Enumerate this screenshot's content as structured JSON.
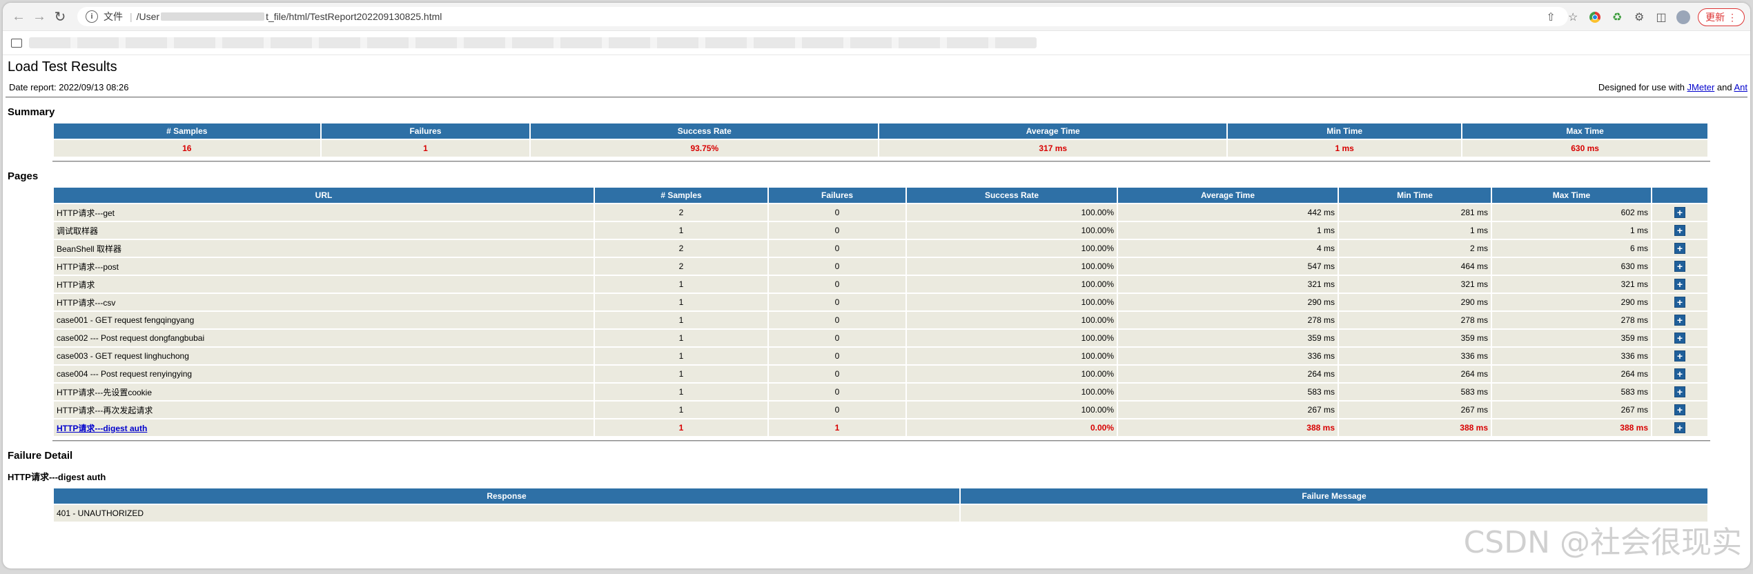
{
  "browser": {
    "url_prefix": "/User",
    "url_suffix": "t_file/html/TestReport202209130825.html",
    "file_label": "文件",
    "update_label": "更新"
  },
  "report": {
    "title": "Load Test Results",
    "date_report": "Date report: 2022/09/13 08:26",
    "designed_prefix": "Designed for use with ",
    "jmeter_link": "JMeter",
    "and_text": " and ",
    "ant_link": "Ant"
  },
  "summary": {
    "heading": "Summary",
    "headers": [
      "# Samples",
      "Failures",
      "Success Rate",
      "Average Time",
      "Min Time",
      "Max Time"
    ],
    "values": [
      "16",
      "1",
      "93.75%",
      "317 ms",
      "1 ms",
      "630 ms"
    ]
  },
  "pages": {
    "heading": "Pages",
    "headers": [
      "URL",
      "# Samples",
      "Failures",
      "Success Rate",
      "Average Time",
      "Min Time",
      "Max Time",
      ""
    ],
    "rows": [
      {
        "url": "HTTP请求---get",
        "samples": "2",
        "failures": "0",
        "rate": "100.00%",
        "avg": "442 ms",
        "min": "281 ms",
        "max": "602 ms"
      },
      {
        "url": "调试取样器",
        "samples": "1",
        "failures": "0",
        "rate": "100.00%",
        "avg": "1 ms",
        "min": "1 ms",
        "max": "1 ms"
      },
      {
        "url": "BeanShell 取样器",
        "samples": "2",
        "failures": "0",
        "rate": "100.00%",
        "avg": "4 ms",
        "min": "2 ms",
        "max": "6 ms"
      },
      {
        "url": "HTTP请求---post",
        "samples": "2",
        "failures": "0",
        "rate": "100.00%",
        "avg": "547 ms",
        "min": "464 ms",
        "max": "630 ms"
      },
      {
        "url": "HTTP请求",
        "samples": "1",
        "failures": "0",
        "rate": "100.00%",
        "avg": "321 ms",
        "min": "321 ms",
        "max": "321 ms"
      },
      {
        "url": "HTTP请求---csv",
        "samples": "1",
        "failures": "0",
        "rate": "100.00%",
        "avg": "290 ms",
        "min": "290 ms",
        "max": "290 ms"
      },
      {
        "url": "case001 - GET request fengqingyang",
        "samples": "1",
        "failures": "0",
        "rate": "100.00%",
        "avg": "278 ms",
        "min": "278 ms",
        "max": "278 ms"
      },
      {
        "url": "case002 --- Post request dongfangbubai",
        "samples": "1",
        "failures": "0",
        "rate": "100.00%",
        "avg": "359 ms",
        "min": "359 ms",
        "max": "359 ms"
      },
      {
        "url": "case003 - GET request linghuchong",
        "samples": "1",
        "failures": "0",
        "rate": "100.00%",
        "avg": "336 ms",
        "min": "336 ms",
        "max": "336 ms"
      },
      {
        "url": "case004 --- Post request renyingying",
        "samples": "1",
        "failures": "0",
        "rate": "100.00%",
        "avg": "264 ms",
        "min": "264 ms",
        "max": "264 ms"
      },
      {
        "url": "HTTP请求---先设置cookie",
        "samples": "1",
        "failures": "0",
        "rate": "100.00%",
        "avg": "583 ms",
        "min": "583 ms",
        "max": "583 ms"
      },
      {
        "url": "HTTP请求---再次发起请求",
        "samples": "1",
        "failures": "0",
        "rate": "100.00%",
        "avg": "267 ms",
        "min": "267 ms",
        "max": "267 ms"
      },
      {
        "url": "HTTP请求---digest auth",
        "samples": "1",
        "failures": "1",
        "rate": "0.00%",
        "avg": "388 ms",
        "min": "388 ms",
        "max": "388 ms",
        "failed": true
      }
    ]
  },
  "failure": {
    "heading": "Failure Detail",
    "subheading": "HTTP请求---digest auth",
    "headers": [
      "Response",
      "Failure Message"
    ],
    "rows": [
      {
        "response": "401 - UNAUTHORIZED",
        "message": ""
      }
    ]
  },
  "watermark": "CSDN @社会很现实"
}
